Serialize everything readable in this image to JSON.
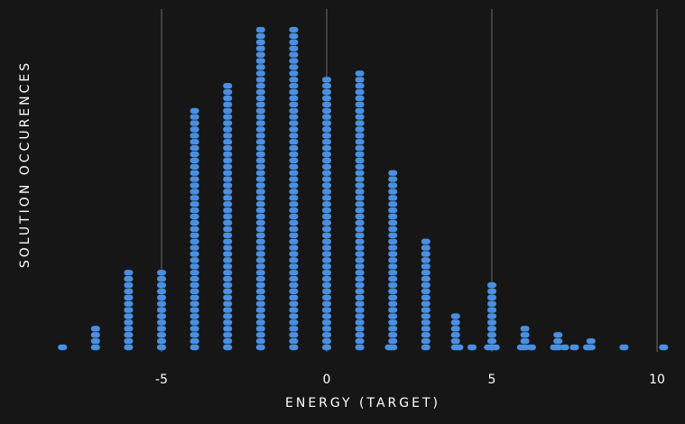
{
  "chart_data": {
    "type": "dot-plot",
    "xlabel": "ENERGY (TARGET)",
    "ylabel": "SOLUTION OCCURENCES",
    "xlim": [
      -8.5,
      10.5
    ],
    "xticks": [
      -5,
      0,
      5,
      10
    ],
    "xtick_labels": [
      "-5",
      "0",
      "5",
      "10"
    ],
    "grid": "vertical lines at x ticks",
    "dot_color": "#4a90e2",
    "background": "#161616",
    "series": [
      {
        "x": [
          -8,
          -7,
          -6,
          -5,
          -4,
          -3,
          -2,
          -1,
          0,
          1,
          1.9,
          2,
          3,
          3.9,
          4,
          4.4,
          4.9,
          5,
          5.1,
          5.9,
          6,
          6.2,
          6.9,
          7,
          7.2,
          7.5,
          7.9,
          8,
          9,
          10.2
        ],
        "counts": [
          1,
          4,
          13,
          13,
          39,
          43,
          52,
          52,
          44,
          45,
          1,
          29,
          18,
          6,
          1,
          1,
          1,
          11,
          1,
          1,
          4,
          1,
          1,
          3,
          1,
          1,
          1,
          2,
          1,
          1
        ]
      }
    ]
  }
}
